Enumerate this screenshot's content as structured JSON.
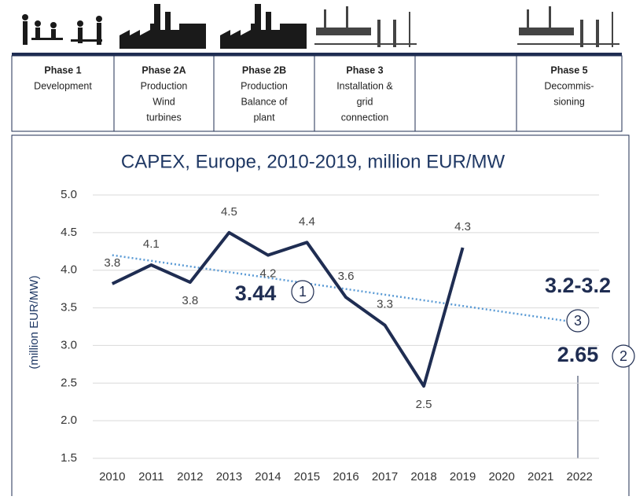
{
  "phases": [
    {
      "title": "Phase 1",
      "lines": [
        "Development"
      ]
    },
    {
      "title": "Phase 2A",
      "lines": [
        "Production",
        "Wind",
        "turbines"
      ]
    },
    {
      "title": "Phase 2B",
      "lines": [
        "Production",
        "Balance of",
        "plant"
      ]
    },
    {
      "title": "Phase 3",
      "lines": [
        "Installation &",
        "grid",
        "connection"
      ]
    },
    {
      "title": "Phase 5",
      "lines": [
        "Decommis-",
        "sioning"
      ]
    }
  ],
  "chart_data": {
    "type": "line",
    "title": "CAPEX, Europe, 2010-2019, million EUR/MW",
    "y_label": "(million EUR/MW)",
    "categories": [
      "2010",
      "2011",
      "2012",
      "2013",
      "2014",
      "2015",
      "2016",
      "2017",
      "2018",
      "2019",
      "2020",
      "2021",
      "2022"
    ],
    "series": [
      {
        "color": "#1f2d52",
        "values": [
          3.82,
          4.07,
          3.84,
          4.5,
          4.2,
          4.37,
          3.64,
          3.27,
          2.46,
          4.3,
          null,
          null,
          null
        ],
        "value_labels": [
          "3.8",
          "4.1",
          "3.8",
          "4.5",
          "4.2",
          "4.4",
          "3.6",
          "3.3",
          "2.5",
          "4.3",
          null,
          null,
          null
        ]
      }
    ],
    "trend": {
      "color": "#5b9bd5",
      "values": [
        4.2,
        4.125,
        4.05,
        3.975,
        3.9,
        3.825,
        3.75,
        3.675,
        3.6,
        3.525,
        3.45,
        3.375,
        3.3
      ]
    },
    "annotations": [
      {
        "text": "3.44",
        "marker": "1"
      },
      {
        "text": "3.2-3.2",
        "marker": "3"
      },
      {
        "text": "2.65",
        "marker": "2"
      }
    ],
    "ylim": [
      1.5,
      5.0
    ],
    "yticks": [
      1.5,
      {
        "value": 2,
        "label": "2.0"
      },
      2.5,
      {
        "value": 3,
        "label": "3.0"
      },
      3.5,
      {
        "value": 4,
        "label": "4.0"
      },
      4.5,
      {
        "value": 5,
        "label": "5.0"
      }
    ],
    "grid": true
  }
}
